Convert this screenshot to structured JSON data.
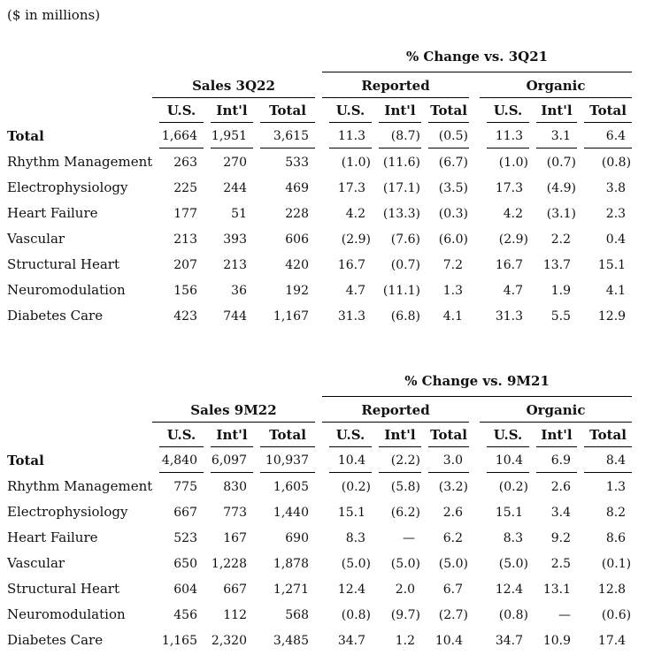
{
  "units_note": "($ in millions)",
  "colors": {
    "text": "#111111",
    "rule": "#000000",
    "background": "#ffffff"
  },
  "tables": [
    {
      "change_header": "% Change vs. 3Q21",
      "sales_header": "Sales 3Q22",
      "reported_header": "Reported",
      "organic_header": "Organic",
      "sub_headers": [
        "U.S.",
        "Int'l",
        "Total"
      ],
      "rows": [
        {
          "label": "Total",
          "bold": true,
          "sales": [
            "1,664",
            "1,951",
            "3,615"
          ],
          "reported": [
            "11.3",
            "(8.7)",
            "(0.5)"
          ],
          "organic": [
            "11.3",
            "3.1",
            "6.4"
          ]
        },
        {
          "label": "Rhythm Management",
          "sales": [
            "263",
            "270",
            "533"
          ],
          "reported": [
            "(1.0)",
            "(11.6)",
            "(6.7)"
          ],
          "organic": [
            "(1.0)",
            "(0.7)",
            "(0.8)"
          ]
        },
        {
          "label": "Electrophysiology",
          "sales": [
            "225",
            "244",
            "469"
          ],
          "reported": [
            "17.3",
            "(17.1)",
            "(3.5)"
          ],
          "organic": [
            "17.3",
            "(4.9)",
            "3.8"
          ]
        },
        {
          "label": "Heart Failure",
          "sales": [
            "177",
            "51",
            "228"
          ],
          "reported": [
            "4.2",
            "(13.3)",
            "(0.3)"
          ],
          "organic": [
            "4.2",
            "(3.1)",
            "2.3"
          ]
        },
        {
          "label": "Vascular",
          "sales": [
            "213",
            "393",
            "606"
          ],
          "reported": [
            "(2.9)",
            "(7.6)",
            "(6.0)"
          ],
          "organic": [
            "(2.9)",
            "2.2",
            "0.4"
          ]
        },
        {
          "label": "Structural Heart",
          "sales": [
            "207",
            "213",
            "420"
          ],
          "reported": [
            "16.7",
            "(0.7)",
            "7.2"
          ],
          "organic": [
            "16.7",
            "13.7",
            "15.1"
          ]
        },
        {
          "label": "Neuromodulation",
          "sales": [
            "156",
            "36",
            "192"
          ],
          "reported": [
            "4.7",
            "(11.1)",
            "1.3"
          ],
          "organic": [
            "4.7",
            "1.9",
            "4.1"
          ]
        },
        {
          "label": "Diabetes Care",
          "sales": [
            "423",
            "744",
            "1,167"
          ],
          "reported": [
            "31.3",
            "(6.8)",
            "4.1"
          ],
          "organic": [
            "31.3",
            "5.5",
            "12.9"
          ]
        }
      ]
    },
    {
      "change_header": "% Change vs. 9M21",
      "sales_header": "Sales 9M22",
      "reported_header": "Reported",
      "organic_header": "Organic",
      "sub_headers": [
        "U.S.",
        "Int'l",
        "Total"
      ],
      "rows": [
        {
          "label": "Total",
          "bold": true,
          "sales": [
            "4,840",
            "6,097",
            "10,937"
          ],
          "reported": [
            "10.4",
            "(2.2)",
            "3.0"
          ],
          "organic": [
            "10.4",
            "6.9",
            "8.4"
          ]
        },
        {
          "label": "Rhythm Management",
          "sales": [
            "775",
            "830",
            "1,605"
          ],
          "reported": [
            "(0.2)",
            "(5.8)",
            "(3.2)"
          ],
          "organic": [
            "(0.2)",
            "2.6",
            "1.3"
          ]
        },
        {
          "label": "Electrophysiology",
          "sales": [
            "667",
            "773",
            "1,440"
          ],
          "reported": [
            "15.1",
            "(6.2)",
            "2.6"
          ],
          "organic": [
            "15.1",
            "3.4",
            "8.2"
          ]
        },
        {
          "label": "Heart Failure",
          "sales": [
            "523",
            "167",
            "690"
          ],
          "reported": [
            "8.3",
            "—",
            "6.2"
          ],
          "organic": [
            "8.3",
            "9.2",
            "8.6"
          ]
        },
        {
          "label": "Vascular",
          "sales": [
            "650",
            "1,228",
            "1,878"
          ],
          "reported": [
            "(5.0)",
            "(5.0)",
            "(5.0)"
          ],
          "organic": [
            "(5.0)",
            "2.5",
            "(0.1)"
          ]
        },
        {
          "label": "Structural Heart",
          "sales": [
            "604",
            "667",
            "1,271"
          ],
          "reported": [
            "12.4",
            "2.0",
            "6.7"
          ],
          "organic": [
            "12.4",
            "13.1",
            "12.8"
          ]
        },
        {
          "label": "Neuromodulation",
          "sales": [
            "456",
            "112",
            "568"
          ],
          "reported": [
            "(0.8)",
            "(9.7)",
            "(2.7)"
          ],
          "organic": [
            "(0.8)",
            "—",
            "(0.6)"
          ]
        },
        {
          "label": "Diabetes Care",
          "sales": [
            "1,165",
            "2,320",
            "3,485"
          ],
          "reported": [
            "34.7",
            "1.2",
            "10.4"
          ],
          "organic": [
            "34.7",
            "10.9",
            "17.4"
          ]
        }
      ]
    }
  ]
}
